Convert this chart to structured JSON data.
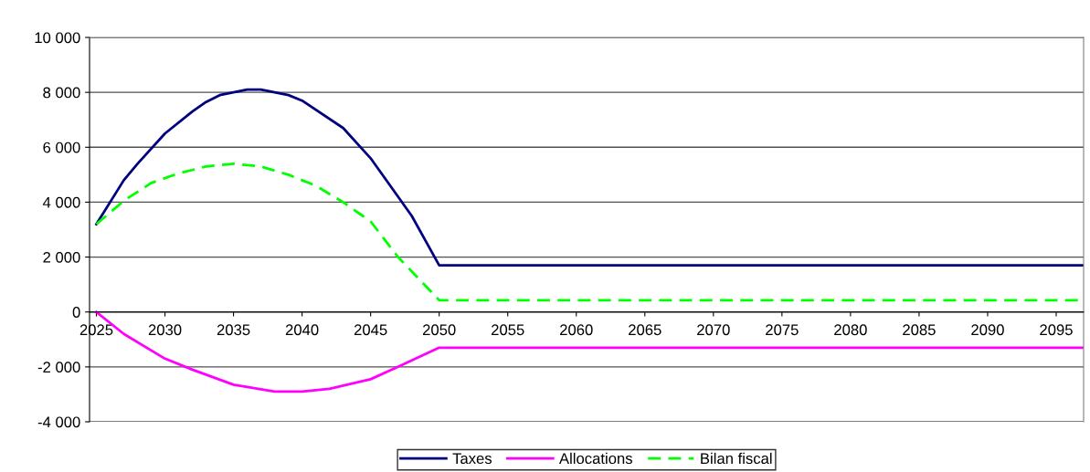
{
  "chart_data": {
    "type": "line",
    "xlim": [
      2024.5,
      2097
    ],
    "xticks": [
      2025,
      2030,
      2035,
      2040,
      2045,
      2050,
      2055,
      2060,
      2065,
      2070,
      2075,
      2080,
      2085,
      2090,
      2095
    ],
    "ylim": [
      -4000,
      10000
    ],
    "yticks": [
      {
        "value": -4000,
        "label": "-4 000"
      },
      {
        "value": -2000,
        "label": "-2 000"
      },
      0,
      {
        "value": 2000,
        "label": "2 000"
      },
      {
        "value": 4000,
        "label": "4 000"
      },
      {
        "value": 6000,
        "label": "6 000"
      },
      {
        "value": 8000,
        "label": "8 000"
      },
      {
        "value": 10000,
        "label": "10 000"
      }
    ],
    "grid": "y",
    "legend": "bottom",
    "series": [
      {
        "name": "Taxes",
        "color": "#000080",
        "line_style": "solid",
        "x": [
          2025,
          2027,
          2028,
          2030,
          2032,
          2033,
          2034,
          2035,
          2036,
          2037,
          2038,
          2039,
          2040,
          2043,
          2045,
          2048,
          2050,
          2097
        ],
        "values": [
          3200,
          4800,
          5400,
          6500,
          7300,
          7650,
          7900,
          8000,
          8100,
          8100,
          8000,
          7900,
          7700,
          6700,
          5600,
          3500,
          1700,
          1700
        ]
      },
      {
        "name": "Allocations",
        "color": "#ff00ff",
        "line_style": "solid",
        "x": [
          2025,
          2027,
          2030,
          2032,
          2035,
          2038,
          2040,
          2042,
          2045,
          2047,
          2050,
          2097
        ],
        "values": [
          0,
          -800,
          -1700,
          -2100,
          -2650,
          -2900,
          -2900,
          -2800,
          -2450,
          -2000,
          -1300,
          -1300
        ]
      },
      {
        "name": "Bilan fiscal",
        "color": "#00ff00",
        "line_style": "dashed",
        "x": [
          2025,
          2027,
          2029,
          2031,
          2033,
          2035,
          2037,
          2039,
          2041,
          2043,
          2045,
          2047,
          2050,
          2097
        ],
        "values": [
          3200,
          4050,
          4700,
          5050,
          5300,
          5400,
          5300,
          5000,
          4600,
          4000,
          3300,
          2000,
          430,
          430
        ]
      }
    ]
  }
}
